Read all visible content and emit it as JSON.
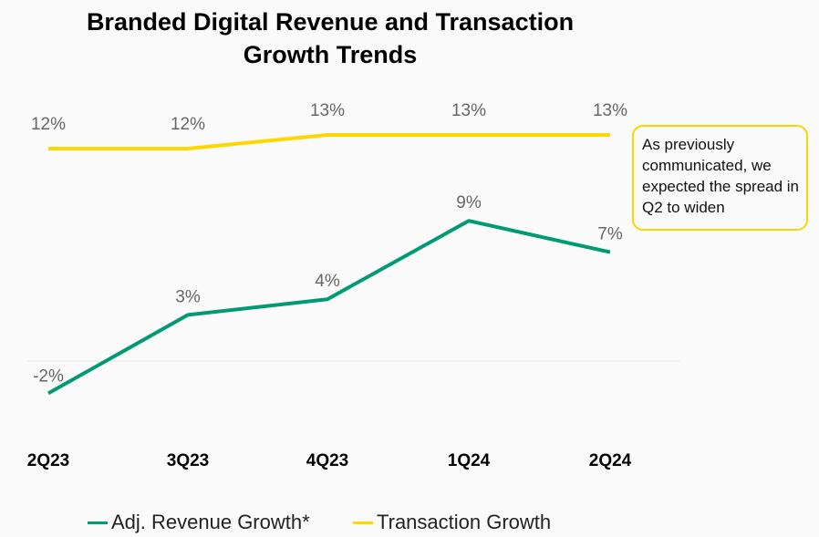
{
  "chart_data": {
    "type": "line",
    "title": "Branded Digital Revenue and Transaction Growth Trends",
    "title_lines": [
      "Branded Digital Revenue and Transaction",
      "Growth Trends"
    ],
    "categories": [
      "2Q23",
      "3Q23",
      "4Q23",
      "1Q24",
      "2Q24"
    ],
    "series": [
      {
        "name": "Adj. Revenue Growth*",
        "color": "#009b72",
        "values": [
          -2,
          3,
          4,
          9,
          7
        ],
        "labels": [
          "-2%",
          "3%",
          "4%",
          "9%",
          "7%"
        ]
      },
      {
        "name": "Transaction Growth",
        "color": "#ffd700",
        "values": [
          12,
          12,
          13,
          13,
          13
        ],
        "labels": [
          "12%",
          "12%",
          "13%",
          "13%",
          "13%"
        ]
      }
    ],
    "xlabel": "",
    "ylabel": "",
    "grid": false,
    "legend": "bottom",
    "annotation": "As previously communicated, we expected the spread in Q2 to widen"
  }
}
